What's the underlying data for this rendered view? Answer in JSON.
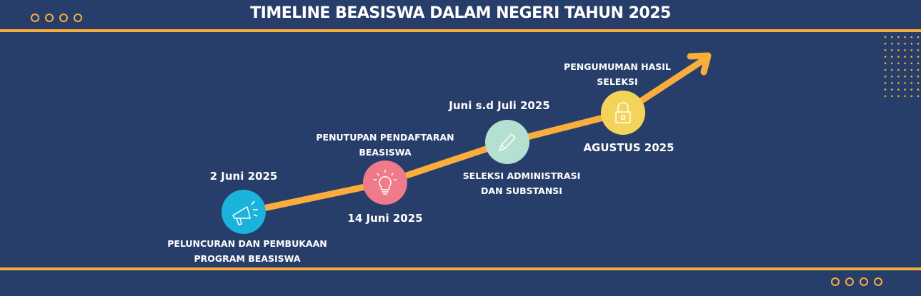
{
  "title": "TIMELINE BEASISWA DALAM NEGERI TAHUN 2025",
  "colors": {
    "background": "#283e6a",
    "accent": "#f9ad3d"
  },
  "milestones": [
    {
      "date": "2 Juni 2025",
      "description": "PELUNCURAN DAN PEMBUKAAN PROGRAM BEASISWA",
      "icon": "megaphone-icon",
      "color": "#1bb3dc"
    },
    {
      "date": "14 Juni 2025",
      "description": "PENUTUPAN PENDAFTARAN BEASISWA",
      "icon": "lightbulb-icon",
      "color": "#ee7a8c"
    },
    {
      "date": "Juni s.d Juli 2025",
      "description": "SELEKSI ADMINISTRASI DAN SUBSTANSI",
      "icon": "pencil-icon",
      "color": "#b3e0d1"
    },
    {
      "date": "AGUSTUS 2025",
      "description": "PENGUMUMAN HASIL SELEKSI",
      "icon": "padlock-icon",
      "color": "#f4d35b"
    }
  ]
}
